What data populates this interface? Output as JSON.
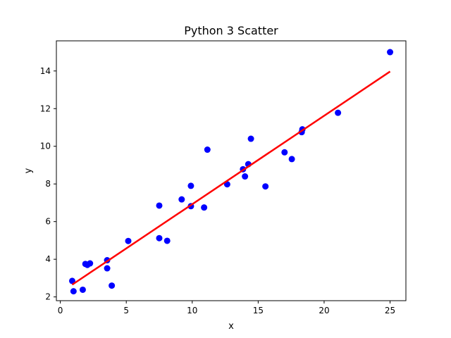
{
  "chart_data": {
    "type": "scatter",
    "title": "Python 3 Scatter",
    "xlabel": "x",
    "ylabel": "y",
    "xlim": [
      -0.3,
      26.2
    ],
    "ylim": [
      1.8,
      15.6
    ],
    "xticks": [
      0,
      5,
      10,
      15,
      20,
      25
    ],
    "yticks": [
      2,
      4,
      6,
      8,
      10,
      12,
      14
    ],
    "grid": false,
    "legend": "none",
    "points": [
      {
        "x": 0.9,
        "y": 2.85
      },
      {
        "x": 1.0,
        "y": 2.3
      },
      {
        "x": 1.7,
        "y": 2.38
      },
      {
        "x": 1.9,
        "y": 3.75
      },
      {
        "x": 2.05,
        "y": 3.7
      },
      {
        "x": 2.25,
        "y": 3.78
      },
      {
        "x": 3.55,
        "y": 3.95
      },
      {
        "x": 3.55,
        "y": 3.52
      },
      {
        "x": 3.9,
        "y": 2.6
      },
      {
        "x": 5.15,
        "y": 4.97
      },
      {
        "x": 7.5,
        "y": 6.85
      },
      {
        "x": 7.5,
        "y": 5.12
      },
      {
        "x": 8.1,
        "y": 4.98
      },
      {
        "x": 9.2,
        "y": 7.18
      },
      {
        "x": 9.9,
        "y": 7.9
      },
      {
        "x": 9.9,
        "y": 6.82
      },
      {
        "x": 10.9,
        "y": 6.75
      },
      {
        "x": 11.15,
        "y": 9.82
      },
      {
        "x": 12.65,
        "y": 7.98
      },
      {
        "x": 13.85,
        "y": 8.78
      },
      {
        "x": 14.0,
        "y": 8.4
      },
      {
        "x": 14.25,
        "y": 9.05
      },
      {
        "x": 14.45,
        "y": 10.4
      },
      {
        "x": 15.55,
        "y": 7.87
      },
      {
        "x": 17.0,
        "y": 9.68
      },
      {
        "x": 17.55,
        "y": 9.32
      },
      {
        "x": 18.3,
        "y": 10.75
      },
      {
        "x": 18.35,
        "y": 10.9
      },
      {
        "x": 21.05,
        "y": 11.78
      },
      {
        "x": 25.0,
        "y": 15.0
      }
    ],
    "fit_line": {
      "x": [
        0.9,
        25.0
      ],
      "y": [
        2.65,
        13.97
      ]
    },
    "colors": {
      "points": "#0000ff",
      "fit_line": "#ff0000",
      "axes": "#000000"
    }
  }
}
